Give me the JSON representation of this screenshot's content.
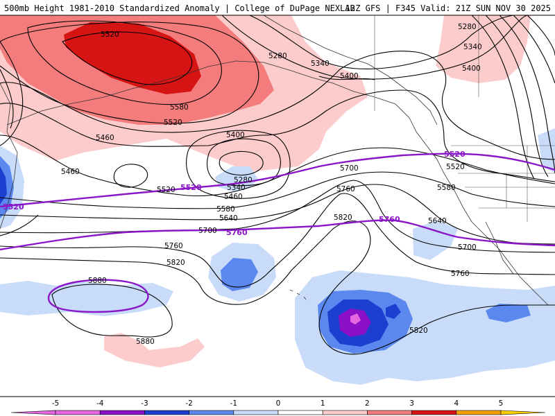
{
  "header": {
    "left": "500mb Height 1981-2010 Standardized Anomaly | College of DuPage NEXLAB",
    "right": "12Z GFS | F345 Valid: 21Z SUN NOV 30 2025"
  },
  "colorbar": {
    "ticks": [
      "-5",
      "-4",
      "-3",
      "-2",
      "-1",
      "0",
      "1",
      "2",
      "3",
      "4",
      "5"
    ],
    "colors": {
      "lt_-4": "#e466e0",
      "-4_-3": "#8b10c8",
      "-3_-2": "#1c3fd0",
      "-2_-1": "#5a88ee",
      "-1_0": "#c8dcfa",
      "0_1": "#ffffff",
      "1_2": "#fccccc",
      "2_3": "#f47c7c",
      "3_4": "#d61414",
      "4_5": "#f4a000",
      "gt_5": "#ffd000"
    }
  },
  "contour_labels": [
    "5520",
    "5280",
    "5340",
    "5400",
    "5580",
    "5520",
    "5460",
    "5400",
    "5460",
    "5520",
    "5280",
    "5340",
    "5460",
    "5580",
    "5640",
    "5700",
    "5760",
    "5820",
    "5880",
    "5880",
    "5700",
    "5760",
    "5820",
    "5580",
    "5520",
    "5640",
    "5700",
    "5760",
    "5820",
    "5280",
    "5340",
    "5400"
  ],
  "purple_labels": [
    "5520",
    "5760",
    "5760",
    "5520",
    "5520"
  ]
}
